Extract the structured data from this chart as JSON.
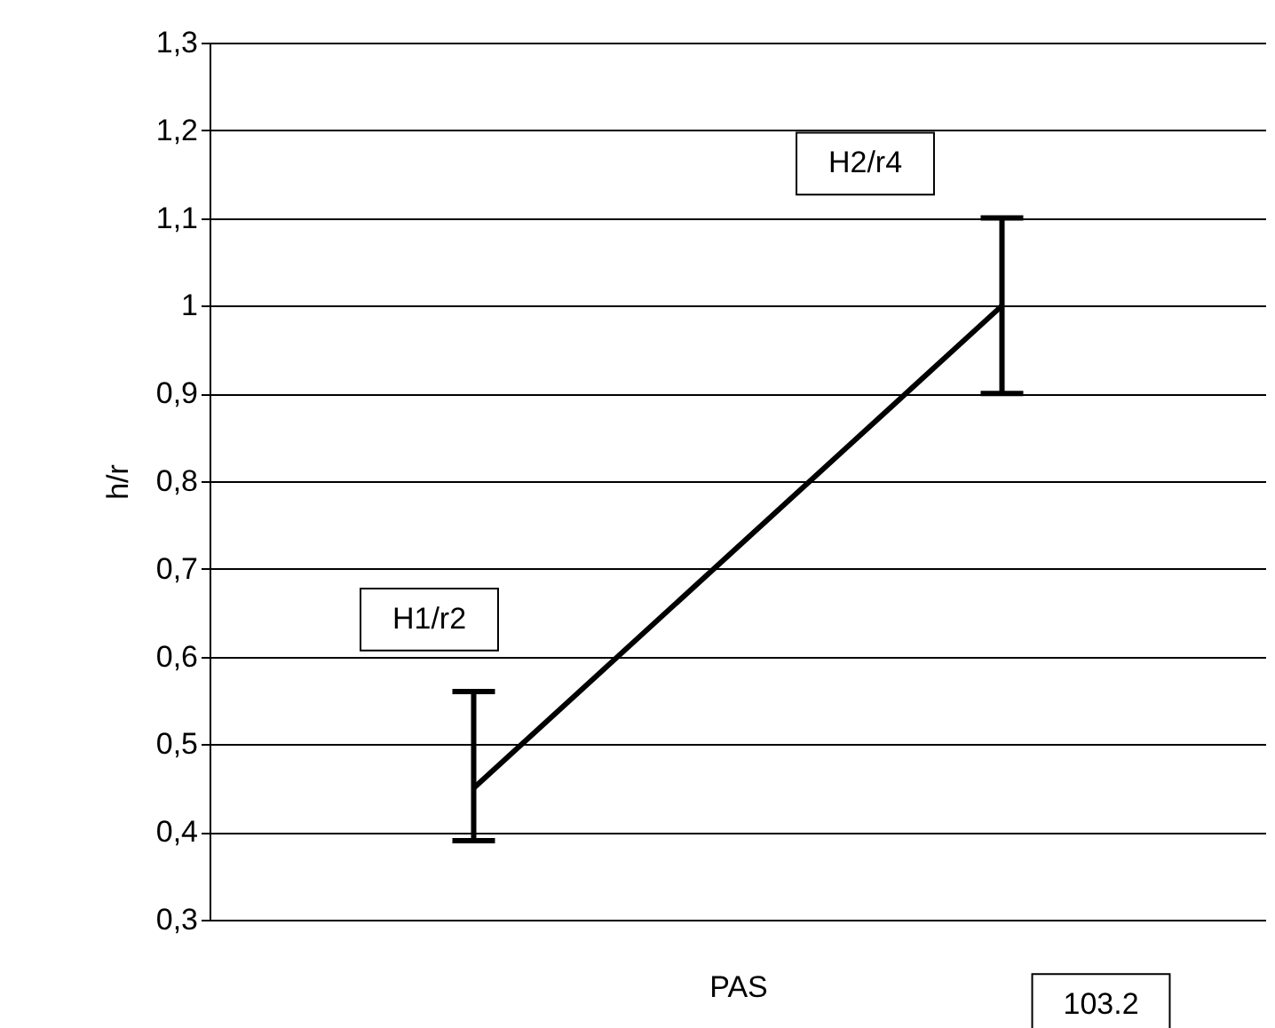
{
  "chart_data": {
    "type": "line",
    "xlabel": "PAS",
    "ylabel": "h/r",
    "categories": [
      null,
      null
    ],
    "series": [
      {
        "color": "#000000",
        "values": [
          0.45,
          1.0
        ],
        "errors": [
          [
            0.39,
            0.56
          ],
          [
            0.9,
            1.1
          ]
        ]
      }
    ],
    "ylim": [
      0.3,
      1.3
    ],
    "yticks": [
      {
        "value": 0.3,
        "label": "0,3"
      },
      {
        "value": 0.4,
        "label": "0,4"
      },
      {
        "value": 0.5,
        "label": "0,5"
      },
      {
        "value": 0.6,
        "label": "0,6"
      },
      {
        "value": 0.7,
        "label": "0,7"
      },
      {
        "value": 0.8,
        "label": "0,8"
      },
      {
        "value": 0.9,
        "label": "0,9"
      },
      {
        "value": 1.0,
        "label": "1"
      },
      {
        "value": 1.1,
        "label": "1,1"
      },
      {
        "value": 1.2,
        "label": "1,2"
      },
      {
        "value": 1.3,
        "label": "1,3"
      }
    ],
    "grid": "y",
    "marker": "none",
    "line_style": "solid",
    "annotations": [
      "H1/r2",
      "H2/r4",
      "103.2"
    ]
  }
}
